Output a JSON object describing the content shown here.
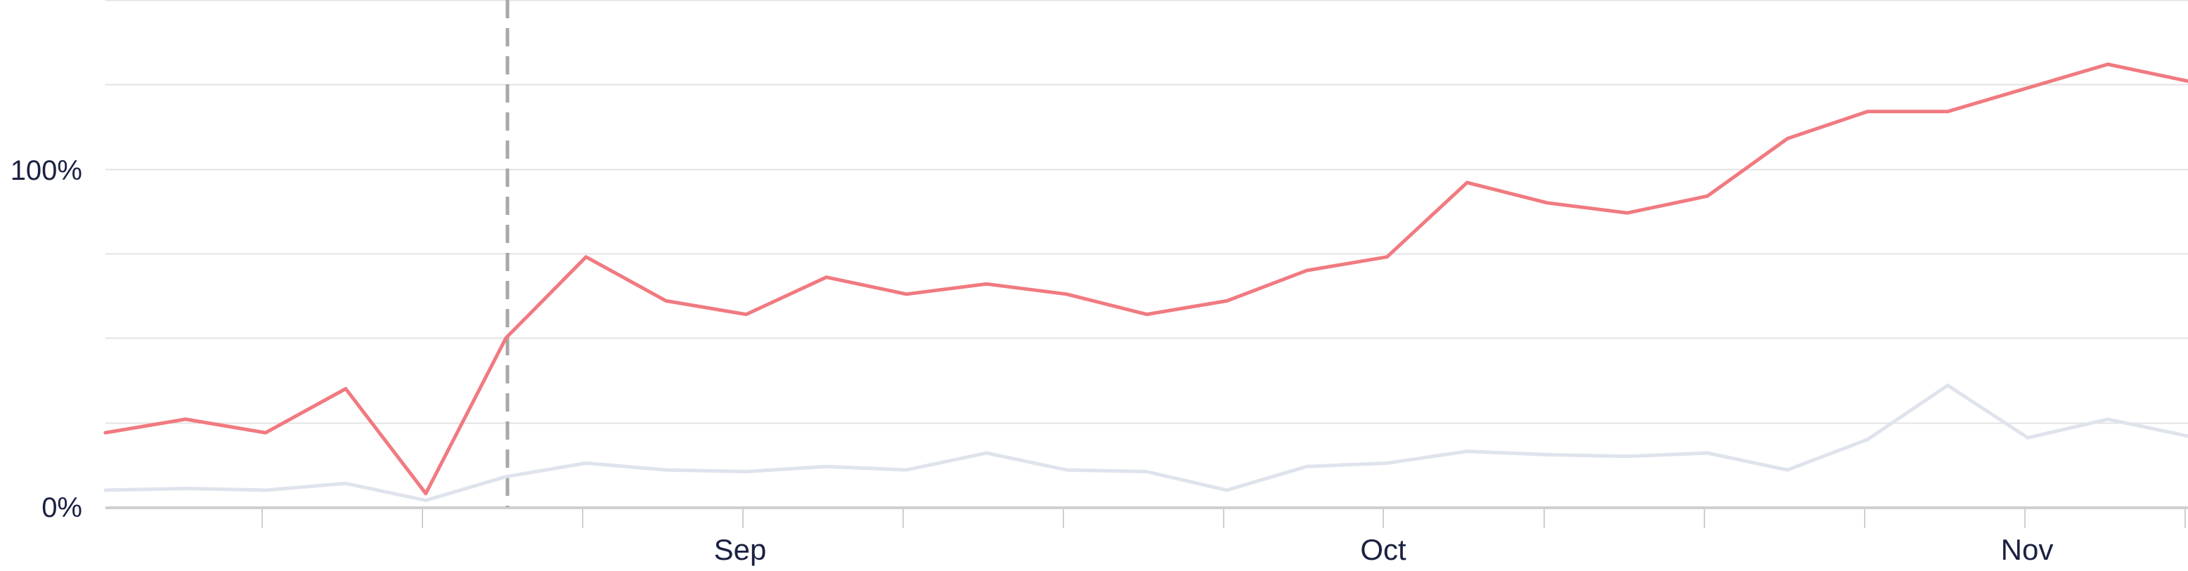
{
  "chart_data": {
    "type": "line",
    "title": "",
    "xlabel": "",
    "ylabel": "",
    "x_tick_labels": [
      "Sep",
      "Oct",
      "Nov"
    ],
    "y_tick_labels": [
      "0%",
      "100%"
    ],
    "ylim": [
      0,
      150
    ],
    "grid": true,
    "marker_line_index": 5,
    "series": [
      {
        "color": "#f07a80",
        "values": [
          22,
          26,
          22,
          35,
          4,
          50,
          74,
          61,
          57,
          68,
          63,
          66,
          63,
          57,
          61,
          70,
          74,
          96,
          90,
          87,
          92,
          109,
          117,
          117,
          124,
          131,
          126
        ]
      },
      {
        "color": "#dfe3ec",
        "values": [
          5,
          5.5,
          5,
          7,
          2,
          9,
          13,
          11,
          10.5,
          12,
          11,
          16,
          11,
          10.5,
          5,
          12,
          13,
          16.5,
          15.5,
          15,
          16,
          11,
          20,
          36,
          20.5,
          26,
          21
        ]
      }
    ]
  },
  "colors": {
    "grid": "#e3e3e3",
    "axis": "#cfcfcf",
    "marker_line": "#a8a8a8",
    "tick_text": "#1b2141"
  }
}
